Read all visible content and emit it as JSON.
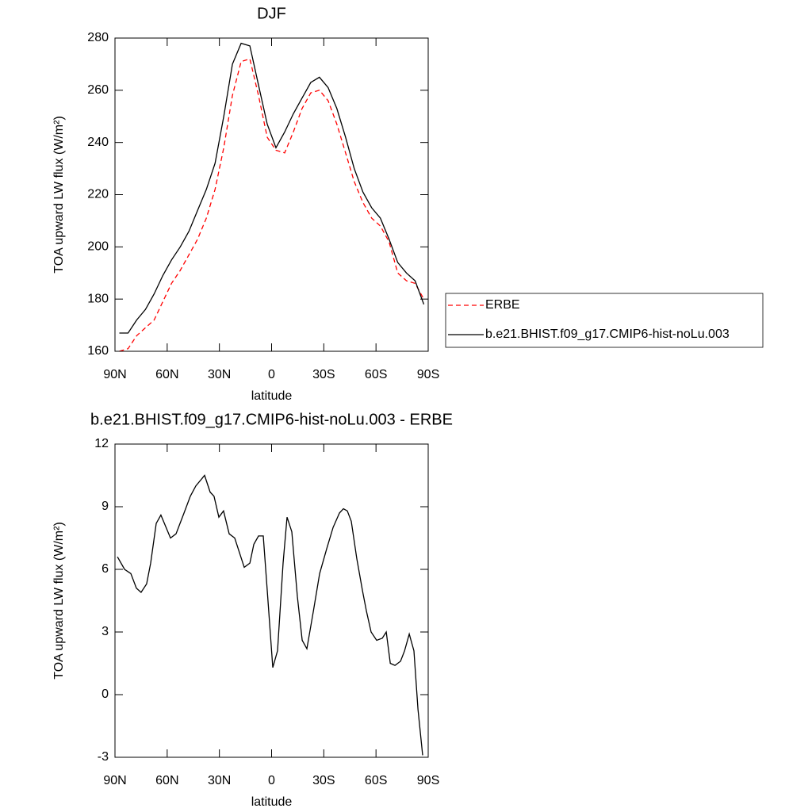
{
  "chart_data": [
    {
      "type": "line",
      "title": "DJF",
      "x_label": "latitude",
      "y_label": "TOA upward LW flux (W/m²)",
      "x": [
        87.5,
        82.5,
        77.5,
        72.5,
        67.5,
        62.5,
        57.5,
        52.5,
        47.5,
        42.5,
        37.5,
        32.5,
        27.5,
        22.5,
        17.5,
        12.5,
        7.5,
        2.5,
        -2.5,
        -7.5,
        -12.5,
        -17.5,
        -22.5,
        -27.5,
        -32.5,
        -37.5,
        -42.5,
        -47.5,
        -52.5,
        -57.5,
        -62.5,
        -67.5,
        -72.5,
        -77.5,
        -82.5,
        -87.5
      ],
      "series": [
        {
          "name": "ERBE",
          "color": "#ff0000",
          "line_style": "dashed",
          "values": [
            160,
            161,
            166,
            169,
            172,
            179,
            186,
            191,
            197,
            203,
            211,
            222,
            238,
            258,
            271,
            272,
            258,
            242,
            237,
            236,
            244,
            253,
            259,
            260,
            256,
            247,
            236,
            225,
            217,
            211,
            208,
            202,
            190,
            187,
            186,
            180
          ]
        },
        {
          "name": "b.e21.BHIST.f09_g17.CMIP6-hist-noLu.003",
          "color": "#000000",
          "line_style": "solid",
          "values": [
            167,
            167,
            172,
            176,
            182,
            189,
            195,
            200,
            206,
            214,
            222,
            232,
            250,
            270,
            278,
            277,
            262,
            247,
            238,
            244,
            251,
            257,
            263,
            265,
            261,
            253,
            242,
            230,
            221,
            215,
            211,
            203,
            194,
            190,
            187,
            178
          ]
        }
      ],
      "xlim": [
        90,
        -90
      ],
      "xticks": [
        {
          "value": 90,
          "label": "90N"
        },
        {
          "value": 60,
          "label": "60N"
        },
        {
          "value": 30,
          "label": "30N"
        },
        0,
        {
          "value": -30,
          "label": "30S"
        },
        {
          "value": -60,
          "label": "60S"
        },
        {
          "value": -90,
          "label": "90S"
        }
      ],
      "ylim": [
        160,
        280
      ],
      "yticks": [
        160,
        180,
        200,
        220,
        240,
        260,
        280
      ],
      "legend": "right"
    },
    {
      "type": "line",
      "title": "b.e21.BHIST.f09_g17.CMIP6-hist-noLu.003 - ERBE",
      "x_label": "latitude",
      "y_label": "TOA upward LW flux (W/m²)",
      "x": [
        88.6,
        84.5,
        80.9,
        77.7,
        75.0,
        71.8,
        69.5,
        66.3,
        63.6,
        58.1,
        54.9,
        50.3,
        46.7,
        43.5,
        38.5,
        35.3,
        33.1,
        30.3,
        27.6,
        24.4,
        21.2,
        15.7,
        12.5,
        10.2,
        7.5,
        4.8,
        2.5,
        -0.7,
        -3.4,
        -6.6,
        -8.9,
        -11.6,
        -14.8,
        -17.6,
        -20.3,
        -24.0,
        -27.6,
        -31.7,
        -35.3,
        -39.0,
        -41.3,
        -43.5,
        -45.8,
        -49.0,
        -52.2,
        -54.5,
        -57.2,
        -60.4,
        -63.6,
        -65.9,
        -68.2,
        -70.9,
        -74.1,
        -76.4,
        -79.1,
        -81.8,
        -84.1,
        -86.8
      ],
      "series": [
        {
          "name": "b.e21.BHIST.f09_g17.CMIP6-hist-noLu.003 - ERBE",
          "color": "#000000",
          "line_style": "solid",
          "values": [
            6.6,
            6.0,
            5.8,
            5.1,
            4.9,
            5.3,
            6.3,
            8.2,
            8.6,
            7.5,
            7.7,
            8.7,
            9.5,
            10.0,
            10.5,
            9.7,
            9.5,
            8.5,
            8.8,
            7.7,
            7.5,
            6.1,
            6.3,
            7.2,
            7.6,
            7.6,
            5.0,
            1.3,
            2.1,
            6.3,
            8.5,
            7.8,
            4.7,
            2.6,
            2.2,
            4.0,
            5.8,
            7.0,
            8.0,
            8.7,
            8.9,
            8.8,
            8.3,
            6.5,
            5.0,
            4.0,
            3.0,
            2.6,
            2.7,
            3.0,
            1.5,
            1.4,
            1.6,
            2.1,
            2.9,
            2.1,
            -0.7,
            -2.9
          ]
        }
      ],
      "xlim": [
        90,
        -90
      ],
      "xticks": [
        {
          "value": 90,
          "label": "90N"
        },
        {
          "value": 60,
          "label": "60N"
        },
        {
          "value": 30,
          "label": "30N"
        },
        0,
        {
          "value": -30,
          "label": "30S"
        },
        {
          "value": -60,
          "label": "60S"
        },
        {
          "value": -90,
          "label": "90S"
        }
      ],
      "ylim": [
        -3,
        12
      ],
      "yticks": [
        -3,
        0,
        3,
        6,
        9,
        12
      ]
    }
  ]
}
